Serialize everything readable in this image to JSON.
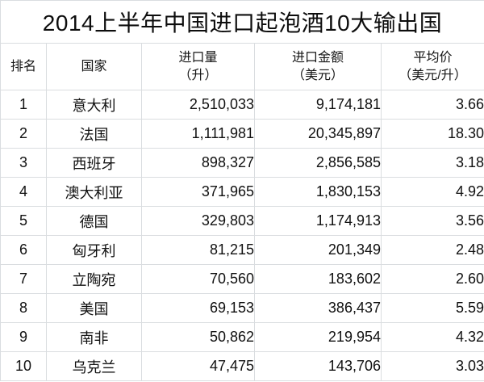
{
  "title": "2014上半年中国进口起泡酒10大输出国",
  "colors": {
    "background": "#ffffff",
    "border": "#dadde0",
    "text": "#111111"
  },
  "table": {
    "columns": [
      {
        "label": "排名",
        "sub": ""
      },
      {
        "label": "国家",
        "sub": ""
      },
      {
        "label": "进口量",
        "sub": "（升）"
      },
      {
        "label": "进口金额",
        "sub": "（美元）"
      },
      {
        "label": "平均价",
        "sub": "（美元/升）"
      }
    ],
    "rows": [
      {
        "rank": "1",
        "country": "意大利",
        "volume": "2,510,033",
        "amount": "9,174,181",
        "price": "3.66"
      },
      {
        "rank": "2",
        "country": "法国",
        "volume": "1,111,981",
        "amount": "20,345,897",
        "price": "18.30"
      },
      {
        "rank": "3",
        "country": "西班牙",
        "volume": "898,327",
        "amount": "2,856,585",
        "price": "3.18"
      },
      {
        "rank": "4",
        "country": "澳大利亚",
        "volume": "371,965",
        "amount": "1,830,153",
        "price": "4.92"
      },
      {
        "rank": "5",
        "country": "德国",
        "volume": "329,803",
        "amount": "1,174,913",
        "price": "3.56"
      },
      {
        "rank": "6",
        "country": "匈牙利",
        "volume": "81,215",
        "amount": "201,349",
        "price": "2.48"
      },
      {
        "rank": "7",
        "country": "立陶宛",
        "volume": "70,560",
        "amount": "183,602",
        "price": "2.60"
      },
      {
        "rank": "8",
        "country": "美国",
        "volume": "69,153",
        "amount": "386,437",
        "price": "5.59"
      },
      {
        "rank": "9",
        "country": "南非",
        "volume": "50,862",
        "amount": "219,954",
        "price": "4.32"
      },
      {
        "rank": "10",
        "country": "乌克兰",
        "volume": "47,475",
        "amount": "143,706",
        "price": "3.03"
      }
    ]
  },
  "chart_data": {
    "type": "table",
    "title": "2014上半年中国进口起泡酒10大输出国",
    "columns": [
      "排名",
      "国家",
      "进口量（升）",
      "进口金额（美元）",
      "平均价（美元/升）"
    ],
    "rows": [
      [
        1,
        "意大利",
        2510033,
        9174181,
        3.66
      ],
      [
        2,
        "法国",
        1111981,
        20345897,
        18.3
      ],
      [
        3,
        "西班牙",
        898327,
        2856585,
        3.18
      ],
      [
        4,
        "澳大利亚",
        371965,
        1830153,
        4.92
      ],
      [
        5,
        "德国",
        329803,
        1174913,
        3.56
      ],
      [
        6,
        "匈牙利",
        81215,
        201349,
        2.48
      ],
      [
        7,
        "立陶宛",
        70560,
        183602,
        2.6
      ],
      [
        8,
        "美国",
        69153,
        386437,
        5.59
      ],
      [
        9,
        "南非",
        50862,
        219954,
        4.32
      ],
      [
        10,
        "乌克兰",
        47475,
        143706,
        3.03
      ]
    ]
  }
}
